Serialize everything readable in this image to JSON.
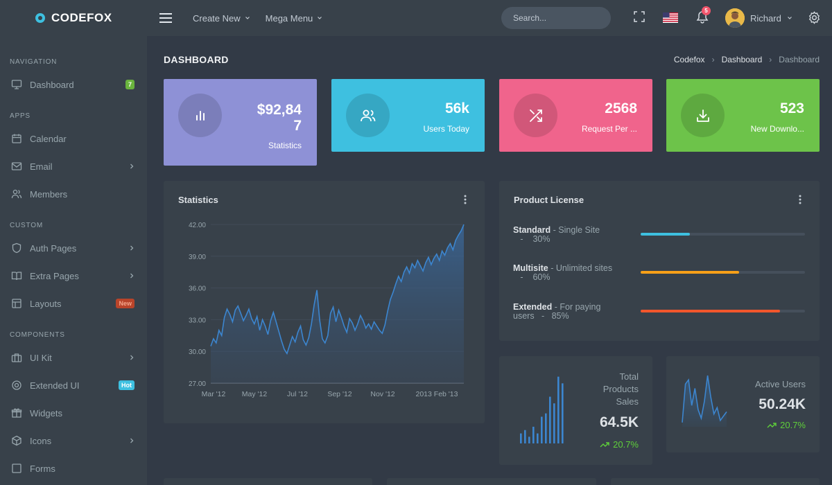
{
  "app": {
    "logo": "CODEFOX",
    "colors": {
      "sidebar": "#38414a",
      "body": "#323a46",
      "accent_blue": "#3ec0e0",
      "accent_green": "#6ab43e"
    }
  },
  "topbar": {
    "create_new": "Create New",
    "mega_menu": "Mega Menu",
    "search_placeholder": "Search...",
    "notification_count": "5",
    "user_name": "Richard",
    "icons": [
      "menu-icon",
      "fullscreen-icon",
      "us-flag-icon",
      "bell-icon",
      "settings-icon"
    ]
  },
  "sidebar": {
    "sections": [
      {
        "heading": "NAVIGATION",
        "items": [
          {
            "label": "Dashboard",
            "icon": "monitor-icon",
            "badge": "7"
          }
        ]
      },
      {
        "heading": "APPS",
        "items": [
          {
            "label": "Calendar",
            "icon": "calendar-icon"
          },
          {
            "label": "Email",
            "icon": "mail-icon",
            "chevron": true
          },
          {
            "label": "Members",
            "icon": "users-icon"
          }
        ]
      },
      {
        "heading": "CUSTOM",
        "items": [
          {
            "label": "Auth Pages",
            "icon": "shield-icon",
            "chevron": true
          },
          {
            "label": "Extra Pages",
            "icon": "book-icon",
            "chevron": true
          },
          {
            "label": "Layouts",
            "icon": "layout-icon",
            "badge": "New"
          }
        ]
      },
      {
        "heading": "COMPONENTS",
        "items": [
          {
            "label": "UI Kit",
            "icon": "briefcase-icon",
            "chevron": true
          },
          {
            "label": "Extended UI",
            "icon": "life-buoy-icon",
            "badge": "Hot"
          },
          {
            "label": "Widgets",
            "icon": "gift-icon"
          },
          {
            "label": "Icons",
            "icon": "package-icon",
            "chevron": true
          },
          {
            "label": "Forms",
            "icon": "forms-icon"
          }
        ]
      }
    ]
  },
  "page": {
    "title": "DASHBOARD",
    "breadcrumb": [
      "Codefox",
      "Dashboard",
      "Dashboard"
    ]
  },
  "stats": [
    {
      "value_line1": "$92,84",
      "value_line2": "7",
      "label": "Statistics",
      "color": "#8e91d6",
      "icon": "bar-chart-icon"
    },
    {
      "value_line1": "56k",
      "label": "Users Today",
      "color": "#3ec0e0",
      "icon": "users-icon"
    },
    {
      "value_line1": "2568",
      "label": "Request Per ...",
      "color": "#f0648c",
      "icon": "shuffle-icon"
    },
    {
      "value_line1": "523",
      "label": "New Downlo...",
      "color": "#6dc34a",
      "icon": "download-icon"
    }
  ],
  "statistics_card": {
    "title": "Statistics",
    "chart_data": {
      "type": "area",
      "x_tick_labels": [
        "Mar '12",
        "May '12",
        "Jul '12",
        "Sep '12",
        "Nov '12",
        "2013 Feb '13"
      ],
      "y_tick_labels": [
        "42.00",
        "39.00",
        "36.00",
        "33.00",
        "30.00",
        "27.00"
      ],
      "ylim": [
        27,
        42
      ],
      "values": [
        30.5,
        31.2,
        30.8,
        32.0,
        31.5,
        33.2,
        34.0,
        33.5,
        32.8,
        33.9,
        34.3,
        33.6,
        32.9,
        33.4,
        34.0,
        33.1,
        32.6,
        33.3,
        32.0,
        33.0,
        32.4,
        31.6,
        32.9,
        33.7,
        32.8,
        31.9,
        31.0,
        30.2,
        29.8,
        30.6,
        31.4,
        30.9,
        31.8,
        32.4,
        31.1,
        30.6,
        31.3,
        32.6,
        34.4,
        35.8,
        33.0,
        31.2,
        30.8,
        31.5,
        33.6,
        34.2,
        32.8,
        33.9,
        33.2,
        32.4,
        31.8,
        33.1,
        32.7,
        32.0,
        32.6,
        33.4,
        32.9,
        32.2,
        32.6,
        32.1,
        32.8,
        32.4,
        32.0,
        31.7,
        32.5,
        33.8,
        34.9,
        35.6,
        36.4,
        37.1,
        36.6,
        37.5,
        38.0,
        37.4,
        38.3,
        37.9,
        38.6,
        38.1,
        37.6,
        38.4,
        38.9,
        38.2,
        38.8,
        39.2,
        38.6,
        39.5,
        39.1,
        39.8,
        40.2,
        39.6,
        40.5,
        41.0,
        41.4,
        42.0
      ],
      "grid": true,
      "color": "#3c86d0"
    }
  },
  "product_license": {
    "title": "Product License",
    "items": [
      {
        "name": "Standard",
        "desc": "- Single Site",
        "percent": "30%",
        "value": 30,
        "color": "#3ec0e0"
      },
      {
        "name": "Multisite",
        "desc": "- Unlimited sites",
        "percent": "60%",
        "value": 60,
        "color": "#f7a018"
      },
      {
        "name": "Extended",
        "desc": "- For paying users",
        "percent": "85%",
        "value": 85,
        "color": "#f2562c"
      }
    ]
  },
  "total_sales": {
    "label_line1": "Total",
    "label_line2": "Products",
    "label_line3": "Sales",
    "value": "64.5K",
    "trend": "20.7%",
    "bars": [
      3,
      4,
      2,
      5,
      3,
      8,
      9,
      14,
      12,
      20,
      18,
      22
    ]
  },
  "active_users": {
    "label": "Active Users",
    "value": "50.24K",
    "trend": "20.7%",
    "line": [
      2,
      20,
      22,
      10,
      18,
      8,
      4,
      12,
      24,
      14,
      6,
      9,
      3,
      5,
      7
    ]
  }
}
